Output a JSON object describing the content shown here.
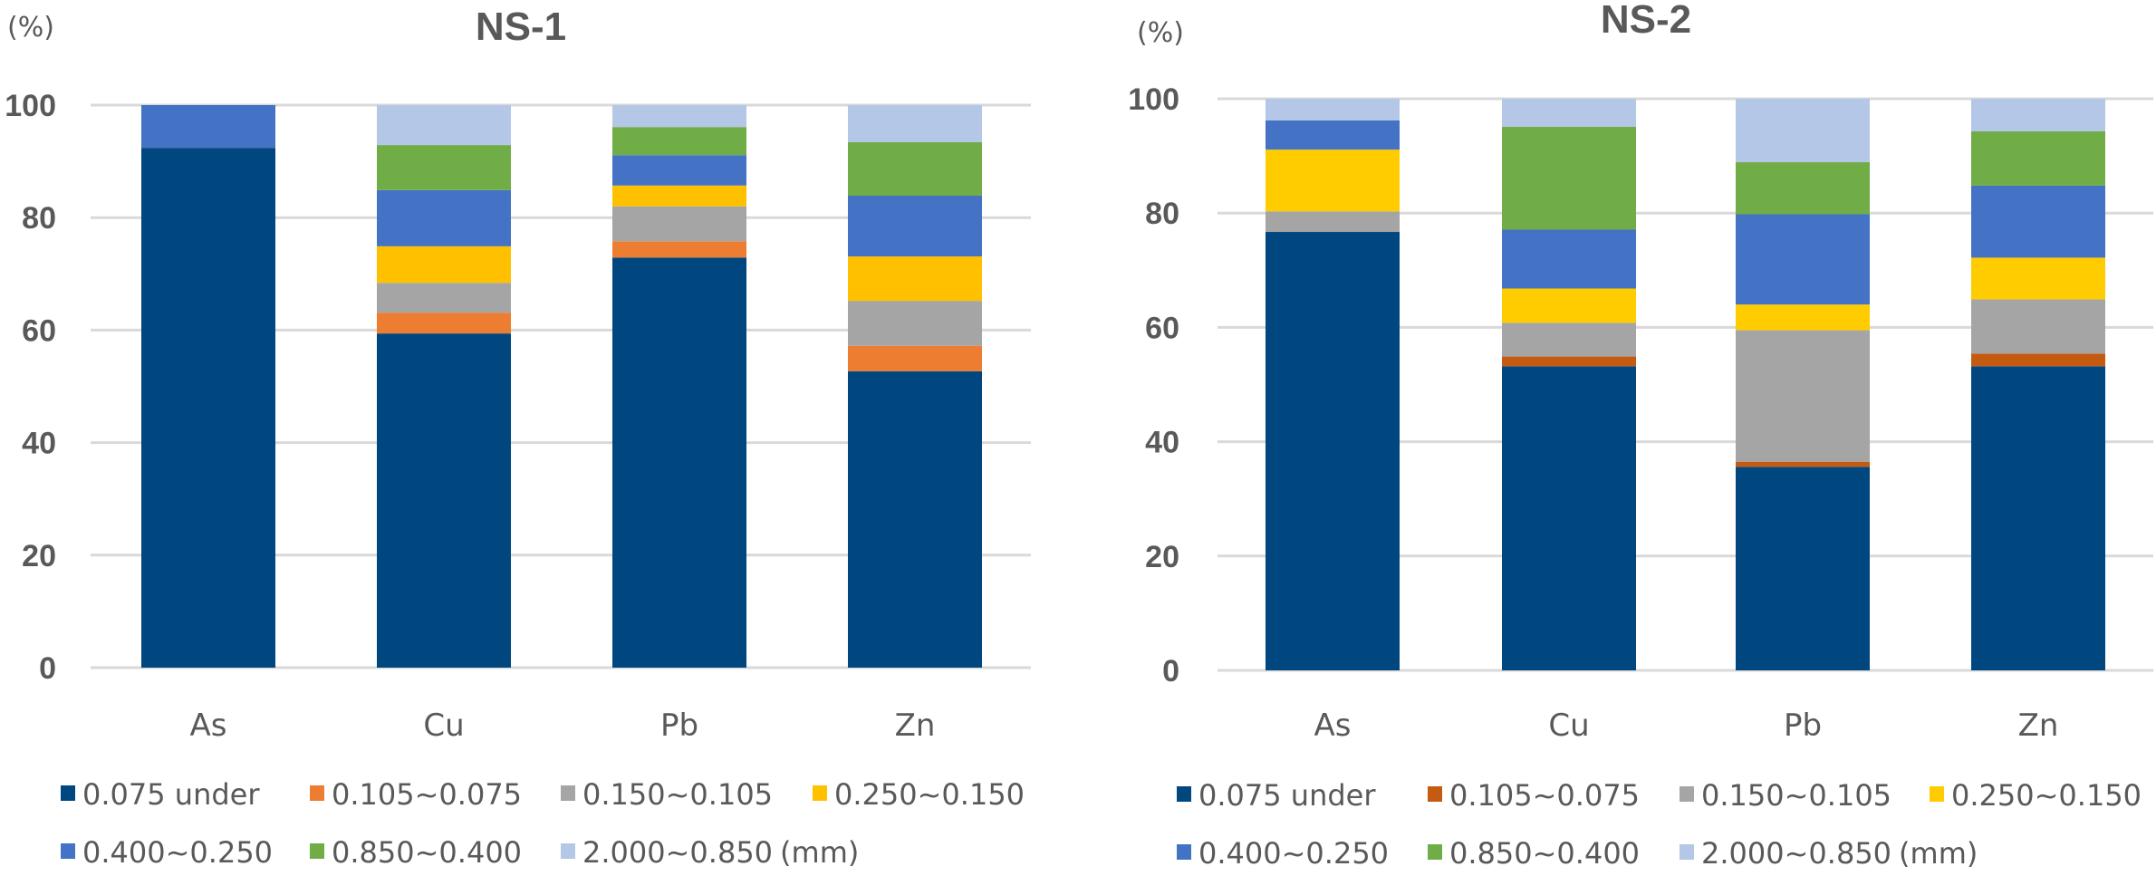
{
  "chart_data": [
    {
      "type": "bar",
      "stacked": true,
      "title": "NS-1",
      "ylabel": "(%)",
      "xlabel": "",
      "ylim": [
        0,
        100
      ],
      "yticks": [
        "0",
        "20",
        "40",
        "60",
        "80",
        "100"
      ],
      "grid": true,
      "legend_position": "bottom",
      "categories": [
        "As",
        "Cu",
        "Pb",
        "Zn"
      ],
      "series": [
        {
          "name": "0.075 under",
          "color": "#00477F",
          "values": [
            92.4,
            59.4,
            72.9,
            52.7
          ]
        },
        {
          "name": "0.105~0.075",
          "color": "#ED7D31",
          "values": [
            0,
            3.7,
            2.9,
            4.5
          ]
        },
        {
          "name": "0.150~0.105",
          "color": "#A5A5A5",
          "values": [
            0,
            5.3,
            6.2,
            8.0
          ]
        },
        {
          "name": "0.250~0.150",
          "color": "#FFC000",
          "values": [
            0,
            6.5,
            3.7,
            7.9
          ]
        },
        {
          "name": "0.400~0.250",
          "color": "#4472C4",
          "values": [
            7.6,
            10.0,
            5.4,
            10.8
          ]
        },
        {
          "name": "0.850~0.400",
          "color": "#70AD47",
          "values": [
            0,
            8.0,
            5.0,
            9.5
          ]
        },
        {
          "name": "2.000~0.850",
          "color": "#B4C7E7",
          "values": [
            0,
            7.1,
            3.9,
            6.6
          ]
        }
      ],
      "legend_suffix": "(mm)"
    },
    {
      "type": "bar",
      "stacked": true,
      "title": "NS-2",
      "ylabel": "(%)",
      "xlabel": "",
      "ylim": [
        0,
        100
      ],
      "yticks": [
        "0",
        "20",
        "40",
        "60",
        "80",
        "100"
      ],
      "grid": true,
      "legend_position": "bottom",
      "categories": [
        "As",
        "Cu",
        "Pb",
        "Zn"
      ],
      "series": [
        {
          "name": "0.075 under",
          "color": "#00477F",
          "values": [
            76.7,
            53.2,
            35.6,
            53.2
          ]
        },
        {
          "name": "0.105~0.075",
          "color": "#C55A11",
          "values": [
            0,
            1.7,
            0.9,
            2.2
          ]
        },
        {
          "name": "0.150~0.105",
          "color": "#A5A5A5",
          "values": [
            3.6,
            5.9,
            23.0,
            9.5
          ]
        },
        {
          "name": "0.250~0.150",
          "color": "#FFCC00",
          "values": [
            10.8,
            6.0,
            4.5,
            7.3
          ]
        },
        {
          "name": "0.400~0.250",
          "color": "#4472C4",
          "values": [
            5.1,
            10.3,
            15.8,
            12.6
          ]
        },
        {
          "name": "0.850~0.400",
          "color": "#70AD47",
          "values": [
            0,
            18.0,
            9.1,
            9.5
          ]
        },
        {
          "name": "2.000~0.850",
          "color": "#B4C7E7",
          "values": [
            3.8,
            4.9,
            11.1,
            5.7
          ]
        }
      ],
      "legend_suffix": "(mm)"
    }
  ]
}
